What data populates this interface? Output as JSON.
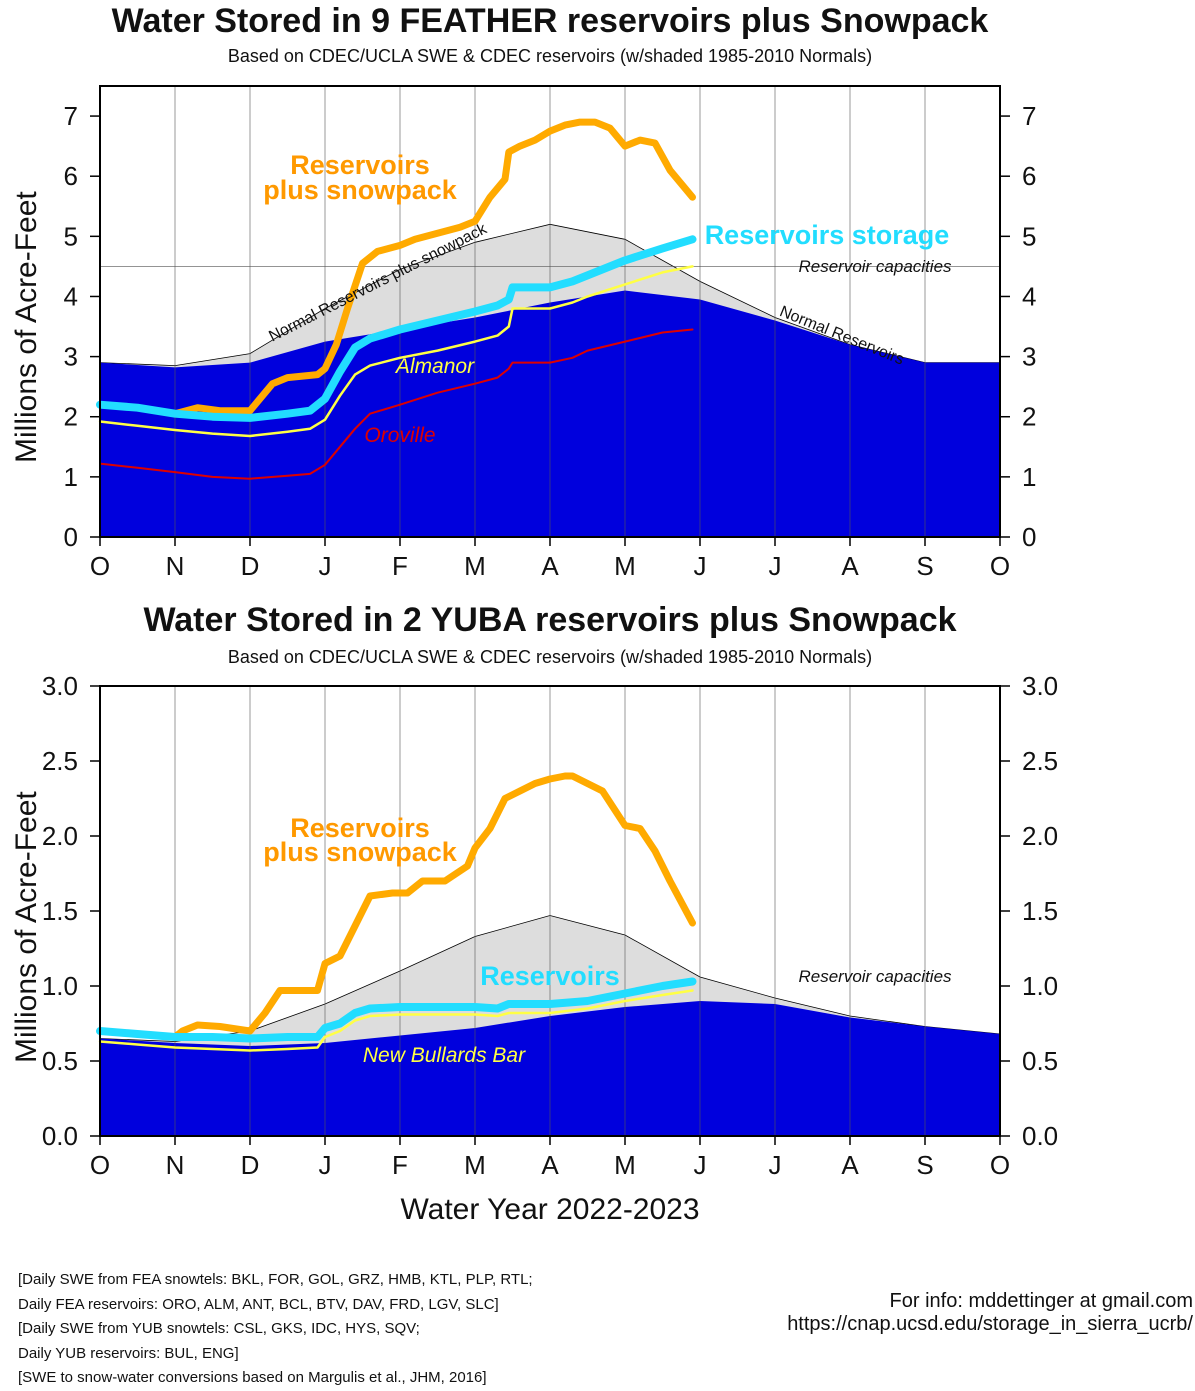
{
  "months": [
    "O",
    "N",
    "D",
    "J",
    "F",
    "M",
    "A",
    "M",
    "J",
    "J",
    "A",
    "S",
    "O"
  ],
  "colors": {
    "normal_reservoir_fill": "#0000dd",
    "normal_total_fill": "#dddddd",
    "snowpack_line": "#ffaa00",
    "snowpack_label": "#ff9900",
    "storage_line": "#22ddff",
    "sub_reservoir_1": "#ffff44",
    "sub_reservoir_2": "#dd0000"
  },
  "chart_data": [
    {
      "type": "area",
      "title": "Water Stored in 9 FEATHER reservoirs plus Snowpack",
      "subtitle": "Based on CDEC/UCLA SWE & CDEC reservoirs (w/shaded 1985-2010 Normals)",
      "ylabel": "Millions of Acre-Feet",
      "xlabel": "",
      "x_unit": "month of water year (0 = Oct 1)",
      "xlim": [
        0,
        12
      ],
      "ylim": [
        0,
        7.5
      ],
      "yticks": [
        "0",
        "1",
        "2",
        "3",
        "4",
        "5",
        "6",
        "7"
      ],
      "ytick_values": [
        0,
        1,
        2,
        3,
        4,
        5,
        6,
        7
      ],
      "grid": "vertical month lines",
      "reservoir_capacity": 4.5,
      "labels": {
        "snowpack": [
          "Reservoirs",
          "plus snowpack"
        ],
        "storage": "Reservoirs storage",
        "capacity": "Reservoir capacities",
        "normal_total": "Normal Reservoirs plus snowpack",
        "normal_reservoirs": "Normal Reservoirs",
        "sub1": "Almanor",
        "sub2": "Oroville"
      },
      "series": [
        {
          "name": "Normal Reservoirs plus snowpack",
          "x": [
            0,
            1,
            2,
            3,
            4,
            5,
            6,
            7,
            8,
            9,
            10,
            11,
            12
          ],
          "values": [
            2.9,
            2.85,
            3.05,
            3.8,
            4.45,
            4.9,
            5.2,
            4.95,
            4.25,
            3.65,
            3.2,
            2.9,
            2.9
          ]
        },
        {
          "name": "Normal Reservoirs",
          "x": [
            0,
            1,
            2,
            3,
            4,
            5,
            6,
            7,
            8,
            9,
            10,
            11,
            12
          ],
          "values": [
            2.9,
            2.82,
            2.9,
            3.25,
            3.45,
            3.65,
            3.9,
            4.1,
            3.95,
            3.6,
            3.2,
            2.9,
            2.9
          ]
        },
        {
          "name": "Reservoirs plus snowpack",
          "x": [
            0,
            0.5,
            1,
            1.3,
            1.6,
            2,
            2.3,
            2.5,
            2.9,
            3,
            3.15,
            3.3,
            3.5,
            3.7,
            4,
            4.2,
            4.5,
            4.8,
            5,
            5.2,
            5.4,
            5.45,
            5.6,
            5.8,
            6,
            6.2,
            6.4,
            6.6,
            6.8,
            7,
            7.2,
            7.4,
            7.6,
            7.8,
            7.9
          ],
          "values": [
            2.2,
            2.15,
            2.05,
            2.15,
            2.1,
            2.1,
            2.55,
            2.65,
            2.7,
            2.8,
            3.2,
            3.8,
            4.55,
            4.75,
            4.85,
            4.95,
            5.05,
            5.15,
            5.25,
            5.65,
            5.95,
            6.4,
            6.5,
            6.6,
            6.75,
            6.85,
            6.9,
            6.9,
            6.8,
            6.5,
            6.6,
            6.55,
            6.1,
            5.8,
            5.65
          ]
        },
        {
          "name": "Reservoirs storage",
          "x": [
            0,
            0.5,
            1,
            1.5,
            2,
            2.5,
            2.8,
            3,
            3.2,
            3.4,
            3.6,
            4,
            4.5,
            5,
            5.3,
            5.45,
            5.5,
            6,
            6.3,
            6.5,
            7,
            7.5,
            7.9
          ],
          "values": [
            2.2,
            2.15,
            2.05,
            2.0,
            1.98,
            2.05,
            2.1,
            2.3,
            2.75,
            3.15,
            3.3,
            3.45,
            3.6,
            3.75,
            3.85,
            3.95,
            4.15,
            4.15,
            4.25,
            4.35,
            4.6,
            4.8,
            4.95
          ]
        },
        {
          "name": "Almanor",
          "x": [
            0,
            0.5,
            1,
            1.5,
            2,
            2.5,
            2.8,
            3,
            3.2,
            3.4,
            3.6,
            4,
            4.5,
            5,
            5.3,
            5.45,
            5.5,
            6,
            6.3,
            6.5,
            7,
            7.5,
            7.9
          ],
          "values": [
            1.92,
            1.85,
            1.78,
            1.72,
            1.68,
            1.75,
            1.8,
            1.95,
            2.35,
            2.7,
            2.85,
            2.98,
            3.1,
            3.25,
            3.35,
            3.5,
            3.8,
            3.8,
            3.9,
            4.0,
            4.2,
            4.4,
            4.5
          ]
        },
        {
          "name": "Oroville",
          "x": [
            0,
            0.5,
            1,
            1.5,
            2,
            2.5,
            2.8,
            3,
            3.2,
            3.4,
            3.6,
            4,
            4.5,
            5,
            5.3,
            5.45,
            5.5,
            6,
            6.3,
            6.5,
            7,
            7.5,
            7.9
          ],
          "values": [
            1.22,
            1.15,
            1.08,
            1.0,
            0.97,
            1.02,
            1.05,
            1.2,
            1.5,
            1.8,
            2.05,
            2.2,
            2.4,
            2.55,
            2.65,
            2.8,
            2.9,
            2.9,
            2.98,
            3.1,
            3.25,
            3.4,
            3.45
          ]
        }
      ]
    },
    {
      "type": "area",
      "title": "Water Stored in 2 YUBA reservoirs plus Snowpack",
      "subtitle": "Based on CDEC/UCLA SWE & CDEC reservoirs (w/shaded 1985-2010 Normals)",
      "ylabel": "Millions of Acre-Feet",
      "xlabel": "Water Year 2022-2023",
      "x_unit": "month of water year (0 = Oct 1)",
      "xlim": [
        0,
        12
      ],
      "ylim": [
        0,
        3.0
      ],
      "yticks": [
        "0.0",
        "0.5",
        "1.0",
        "1.5",
        "2.0",
        "2.5",
        "3.0"
      ],
      "ytick_values": [
        0,
        0.5,
        1,
        1.5,
        2,
        2.5,
        3
      ],
      "grid": "vertical month lines",
      "reservoir_capacity": null,
      "labels": {
        "snowpack": [
          "Reservoirs",
          "plus snowpack"
        ],
        "storage": "Reservoirs",
        "capacity": "Reservoir capacities",
        "sub1": "New Bullards Bar"
      },
      "series": [
        {
          "name": "Normal Reservoirs plus snowpack",
          "x": [
            0,
            1,
            2,
            3,
            4,
            5,
            6,
            7,
            8,
            9,
            10,
            11,
            12
          ],
          "values": [
            0.65,
            0.63,
            0.7,
            0.88,
            1.1,
            1.33,
            1.47,
            1.34,
            1.06,
            0.92,
            0.8,
            0.73,
            0.68
          ]
        },
        {
          "name": "Normal Reservoirs",
          "x": [
            0,
            1,
            2,
            3,
            4,
            5,
            6,
            7,
            8,
            9,
            10,
            11,
            12
          ],
          "values": [
            0.65,
            0.62,
            0.6,
            0.62,
            0.67,
            0.72,
            0.8,
            0.86,
            0.9,
            0.88,
            0.79,
            0.73,
            0.68
          ]
        },
        {
          "name": "Reservoirs plus snowpack",
          "x": [
            0,
            0.5,
            1,
            1.1,
            1.3,
            1.6,
            2,
            2.2,
            2.4,
            2.6,
            2.9,
            3,
            3.2,
            3.4,
            3.6,
            3.9,
            4.1,
            4.3,
            4.6,
            4.9,
            5,
            5.2,
            5.4,
            5.6,
            5.8,
            6,
            6.2,
            6.3,
            6.5,
            6.7,
            7,
            7.2,
            7.4,
            7.6,
            7.9
          ],
          "values": [
            0.7,
            0.68,
            0.66,
            0.7,
            0.74,
            0.73,
            0.7,
            0.82,
            0.97,
            0.97,
            0.97,
            1.15,
            1.2,
            1.4,
            1.6,
            1.62,
            1.62,
            1.7,
            1.7,
            1.8,
            1.92,
            2.05,
            2.25,
            2.3,
            2.35,
            2.38,
            2.4,
            2.4,
            2.35,
            2.3,
            2.07,
            2.05,
            1.9,
            1.7,
            1.42
          ]
        },
        {
          "name": "Reservoirs",
          "x": [
            0,
            0.5,
            1,
            1.5,
            2,
            2.5,
            2.9,
            3,
            3.2,
            3.4,
            3.6,
            4,
            4.5,
            5,
            5.3,
            5.45,
            6,
            6.5,
            7,
            7.5,
            7.9
          ],
          "values": [
            0.7,
            0.68,
            0.66,
            0.66,
            0.65,
            0.66,
            0.66,
            0.72,
            0.75,
            0.82,
            0.85,
            0.86,
            0.86,
            0.86,
            0.85,
            0.88,
            0.88,
            0.9,
            0.95,
            1.0,
            1.03
          ]
        },
        {
          "name": "New Bullards Bar",
          "x": [
            0,
            0.5,
            1,
            1.5,
            2,
            2.5,
            2.9,
            3,
            3.2,
            3.4,
            3.6,
            4,
            4.5,
            5,
            5.3,
            5.45,
            6,
            6.5,
            7,
            7.5,
            7.9
          ],
          "values": [
            0.63,
            0.61,
            0.59,
            0.58,
            0.57,
            0.58,
            0.59,
            0.66,
            0.7,
            0.77,
            0.8,
            0.81,
            0.81,
            0.81,
            0.8,
            0.82,
            0.82,
            0.85,
            0.9,
            0.94,
            0.97
          ]
        }
      ]
    }
  ],
  "footnotes": [
    "[Daily SWE from FEA snowtels: BKL, FOR, GOL, GRZ, HMB, KTL, PLP, RTL;",
    "Daily FEA reservoirs: ORO, ALM, ANT, BCL, BTV, DAV, FRD, LGV, SLC]",
    "[Daily SWE from YUB snowtels: CSL, GKS, IDC, HYS, SQV;",
    "Daily YUB reservoirs: BUL, ENG]",
    "[SWE to snow-water conversions based on Margulis et al., JHM, 2016]"
  ],
  "info": [
    "For info: mddettinger at gmail.com",
    "https://cnap.ucsd.edu/storage_in_sierra_ucrb/"
  ]
}
